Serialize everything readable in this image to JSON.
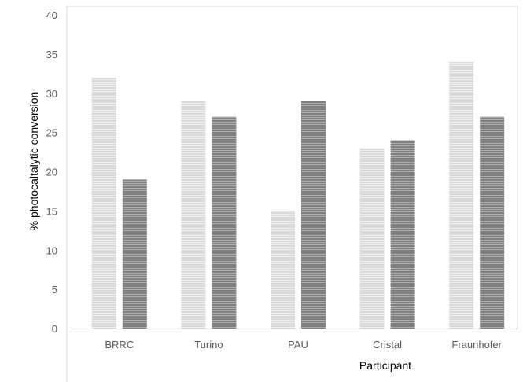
{
  "chart_data": {
    "type": "bar",
    "categories": [
      "BRRC",
      "Turino",
      "PAU",
      "Cristal",
      "Fraunhofer"
    ],
    "series": [
      {
        "values": [
          32,
          29,
          15,
          23,
          34
        ],
        "color": "#d9d9d9"
      },
      {
        "values": [
          19,
          27,
          29,
          24,
          27
        ],
        "color": "#7f7f7f"
      }
    ],
    "xlabel": "Participant",
    "ylabel": "% photocaltalytic conversion",
    "ylim": [
      0,
      40
    ],
    "yticks": [
      "0",
      "5",
      "10",
      "15",
      "20",
      "25",
      "30",
      "35",
      "40"
    ],
    "grid": false,
    "legend": "none",
    "bar_fill": "horizontal-stripes"
  }
}
